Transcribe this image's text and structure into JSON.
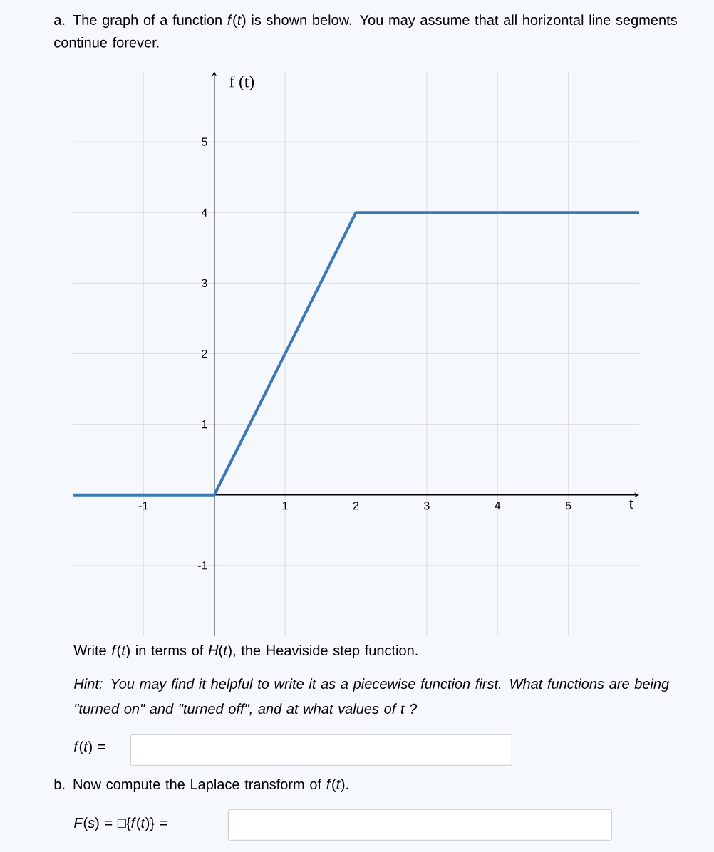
{
  "chart_data": {
    "type": "line",
    "title": "a. The graph of a function *f*(*t*) is shown below. You may assume that all horizontal line segments continue forever.",
    "xlabel": "t",
    "ylabel": "f (t)",
    "x": [
      -2,
      0,
      2,
      6
    ],
    "values": [
      0,
      0,
      4,
      4
    ],
    "color": "#3b78b8",
    "line_style": "solid",
    "xlim": [
      -2,
      6
    ],
    "ylim": [
      -2,
      6
    ],
    "xticks": [
      -1,
      1,
      2,
      3,
      4,
      5
    ],
    "yticks": [
      -1,
      1,
      2,
      3,
      4,
      5
    ],
    "grid": true,
    "annotations": [
      "Write *f*(*t*) in terms of *H*(*t*), the Heaviside step function.",
      "Hint: You may find it helpful to write it as a piecewise function first. What functions are being \"turned on\" and \"turned off\", and at what values of t ?",
      "*f*(*t*) =",
      "b. Now compute the Laplace transform of *f*(*t*).",
      "*F*(*s*) = □{*f*(*t*)} ="
    ]
  }
}
